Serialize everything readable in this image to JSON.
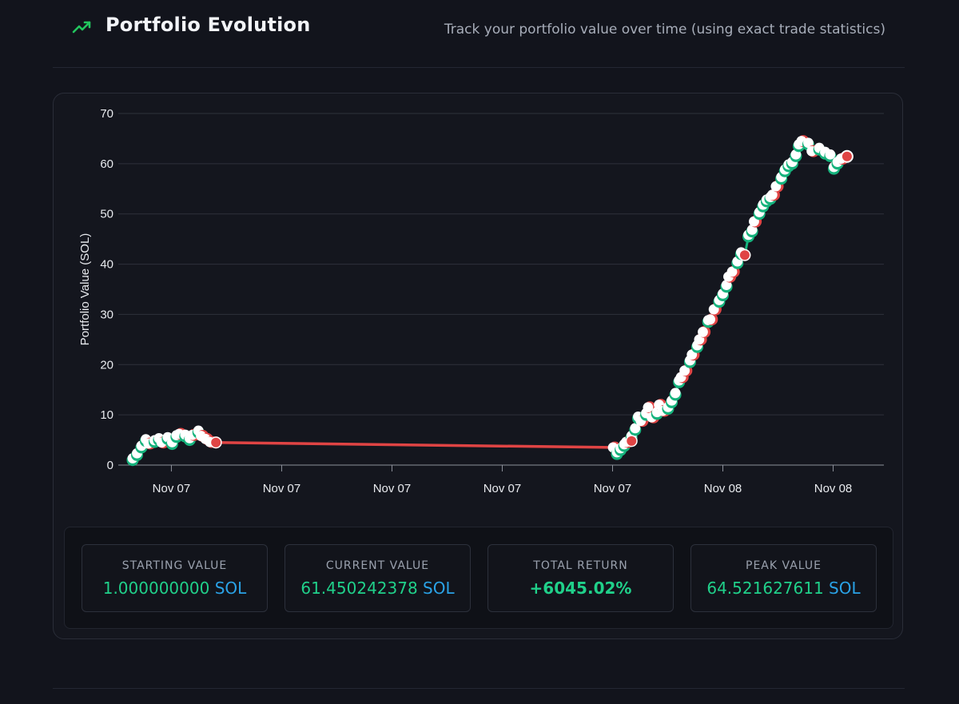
{
  "header": {
    "title": "Portfolio Evolution",
    "subtitle": "Track your portfolio value over time (using exact trade statistics)",
    "icon": "trending-up-icon",
    "accent": "#22c55e"
  },
  "stats": [
    {
      "label": "STARTING VALUE",
      "number": "1.000000000",
      "unit": "SOL"
    },
    {
      "label": "CURRENT VALUE",
      "number": "61.450242378",
      "unit": "SOL"
    },
    {
      "label": "TOTAL RETURN",
      "number": "+6045.02%",
      "unit": ""
    },
    {
      "label": "PEAK VALUE",
      "number": "64.521627611",
      "unit": "SOL"
    }
  ],
  "colors": {
    "up": "#16b37d",
    "down": "#e04444",
    "value_green": "#20d08a",
    "value_blue": "#2aa2e6"
  },
  "chart_data": {
    "type": "line",
    "ylabel": "Portfolio Value (SOL)",
    "xlabel": "",
    "ylim": [
      0,
      70
    ],
    "yticks": [
      0,
      10,
      20,
      30,
      40,
      50,
      60,
      70
    ],
    "xtick_labels": [
      "Nov 07",
      "Nov 07",
      "Nov 07",
      "Nov 07",
      "Nov 07",
      "Nov 08",
      "Nov 08"
    ],
    "xlim": [
      0,
      100
    ],
    "xtick_positions": [
      5.3,
      20.4,
      35.5,
      50.6,
      65.7,
      80.8,
      95.9
    ],
    "grid": true,
    "legend": "none",
    "series": [
      {
        "points": [
          [
            0,
            1.0,
            "up"
          ],
          [
            0.6,
            2.0,
            "up"
          ],
          [
            1.2,
            3.5,
            "up"
          ],
          [
            1.8,
            4.8,
            "up"
          ],
          [
            2.4,
            4.3,
            "down"
          ],
          [
            3.0,
            4.6,
            "up"
          ],
          [
            3.6,
            5.0,
            "up"
          ],
          [
            4.2,
            4.5,
            "down"
          ],
          [
            4.8,
            5.2,
            "up"
          ],
          [
            5.4,
            4.2,
            "up"
          ],
          [
            6.0,
            5.6,
            "up"
          ],
          [
            6.6,
            6.2,
            "down"
          ],
          [
            7.2,
            5.7,
            "up"
          ],
          [
            7.8,
            5.0,
            "up"
          ],
          [
            8.4,
            6.0,
            "down"
          ],
          [
            9.0,
            6.5,
            "up"
          ],
          [
            9.6,
            5.8,
            "down"
          ],
          [
            10.2,
            5.2,
            "down"
          ],
          [
            10.8,
            4.6,
            "down"
          ],
          [
            11.4,
            4.5,
            "down"
          ],
          [
            66.0,
            3.5,
            "down"
          ],
          [
            66.3,
            2.2,
            "up"
          ],
          [
            66.8,
            3.0,
            "up"
          ],
          [
            67.3,
            3.8,
            "up"
          ],
          [
            67.8,
            4.6,
            "down"
          ],
          [
            68.3,
            5.5,
            "up"
          ],
          [
            68.8,
            7.0,
            "up"
          ],
          [
            69.2,
            9.3,
            "up"
          ],
          [
            69.8,
            8.8,
            "down"
          ],
          [
            70.3,
            10.0,
            "up"
          ],
          [
            70.8,
            11.5,
            "down"
          ],
          [
            71.3,
            9.5,
            "down"
          ],
          [
            71.8,
            10.2,
            "up"
          ],
          [
            72.3,
            12.0,
            "down"
          ],
          [
            72.8,
            10.8,
            "down"
          ],
          [
            73.3,
            11.2,
            "up"
          ],
          [
            73.8,
            12.5,
            "up"
          ],
          [
            74.3,
            14.0,
            "up"
          ],
          [
            74.8,
            16.5,
            "up"
          ],
          [
            75.3,
            17.5,
            "down"
          ],
          [
            75.8,
            18.8,
            "down"
          ],
          [
            76.3,
            20.5,
            "up"
          ],
          [
            76.8,
            22.0,
            "down"
          ],
          [
            77.3,
            23.5,
            "up"
          ],
          [
            77.8,
            25.0,
            "down"
          ],
          [
            78.3,
            26.5,
            "down"
          ],
          [
            78.8,
            28.5,
            "up"
          ],
          [
            79.3,
            29.0,
            "down"
          ],
          [
            79.8,
            31.0,
            "down"
          ],
          [
            80.3,
            32.5,
            "up"
          ],
          [
            80.8,
            33.8,
            "up"
          ],
          [
            81.3,
            35.5,
            "up"
          ],
          [
            81.8,
            37.5,
            "down"
          ],
          [
            82.3,
            38.5,
            "down"
          ],
          [
            82.8,
            40.2,
            "up"
          ],
          [
            83.3,
            42.0,
            "up"
          ],
          [
            83.8,
            41.8,
            "down"
          ],
          [
            84.3,
            45.5,
            "up"
          ],
          [
            84.8,
            46.5,
            "up"
          ],
          [
            85.3,
            48.5,
            "down"
          ],
          [
            85.8,
            50.0,
            "up"
          ],
          [
            86.3,
            51.5,
            "up"
          ],
          [
            86.8,
            52.5,
            "up"
          ],
          [
            87.3,
            53.0,
            "up"
          ],
          [
            87.8,
            53.8,
            "down"
          ],
          [
            88.3,
            55.5,
            "down"
          ],
          [
            88.8,
            57.0,
            "up"
          ],
          [
            89.3,
            58.5,
            "up"
          ],
          [
            89.8,
            59.5,
            "up"
          ],
          [
            90.3,
            60.0,
            "up"
          ],
          [
            90.8,
            61.5,
            "up"
          ],
          [
            91.2,
            63.5,
            "up"
          ],
          [
            91.8,
            64.5,
            "down"
          ],
          [
            92.5,
            63.8,
            "up"
          ],
          [
            93.2,
            62.5,
            "down"
          ],
          [
            94.0,
            62.8,
            "up"
          ],
          [
            94.8,
            62.0,
            "up"
          ],
          [
            95.5,
            61.5,
            "up"
          ],
          [
            96.0,
            59.0,
            "up"
          ],
          [
            96.5,
            60.0,
            "up"
          ],
          [
            97.2,
            61.0,
            "down"
          ],
          [
            97.8,
            61.45,
            "down"
          ]
        ]
      }
    ]
  }
}
